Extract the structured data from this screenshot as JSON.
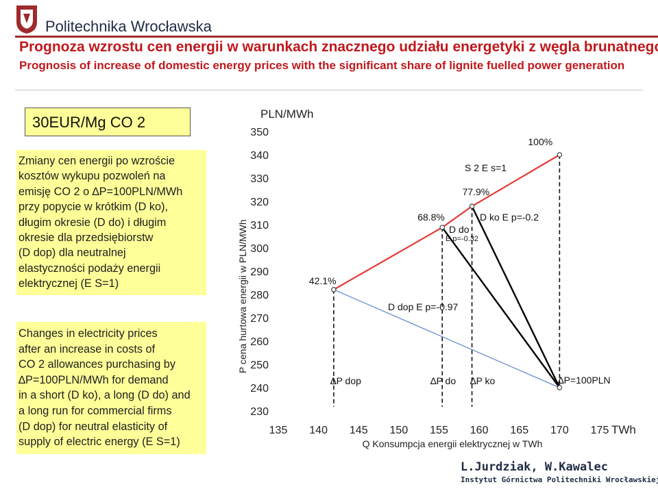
{
  "header": {
    "university": "Politechnika Wrocławska",
    "title_pl": "Prognoza wzrostu cen energii w warunkach znacznego udziału energetyki z węgla brunatnego",
    "title_en": "Prognosis of increase of domestic energy prices with the significant share of lignite fuelled power generation"
  },
  "side": {
    "price_box": "30EUR/Mg CO 2",
    "text_pl": "Zmiany cen energii po wzroście\nkosztów wykupu pozwoleń na\nemisję CO 2 o ∆P=100PLN/MWh\nprzy popycie w krótkim (D ko),\ndługim okresie (D do) i długim\nokresie dla przedsiębiorstw\n(D dop) dla neutralnej\nelastyczności podaży energii\nelektrycznej (E S=1)",
    "text_en": "Changes in electricity prices\nafter an increase in costs of\nCO 2 allowances purchasing by\n∆P=100PLN/MWh for demand\nin a short (D ko), a long (D do) and\na long run for commercial firms\n(D dop) for neutral elasticity of\nsupply of electric energy (E S=1)"
  },
  "footer": {
    "authors": "L.Jurdziak, W.Kawalec",
    "institute": "Instytut Górnictwa Politechniki Wrocławskiej"
  },
  "chart_data": {
    "type": "line",
    "ylabel_unit": "PLN/MWh",
    "ylabel": "P cena hurtowa energii   w PLN/MWh",
    "xlabel": "Q Konsumpcja energii elektrycznej w TWh",
    "xlabel_unit": "TWh",
    "xlim": [
      135,
      175
    ],
    "ylim": [
      230,
      350
    ],
    "xticks": [
      135,
      140,
      145,
      150,
      155,
      160,
      165,
      170,
      175
    ],
    "yticks": [
      230,
      240,
      250,
      260,
      270,
      280,
      290,
      300,
      310,
      320,
      330,
      340,
      350
    ],
    "points": {
      "base": {
        "x": 170,
        "y": 240
      },
      "dop": {
        "x": 141.9,
        "y": 282.1,
        "label": "42.1%"
      },
      "do": {
        "x": 155.4,
        "y": 308.8,
        "label": "68.8%"
      },
      "ko": {
        "x": 159.1,
        "y": 317.9,
        "label": "77.9%"
      },
      "s2": {
        "x": 170,
        "y": 340,
        "label": "100%"
      }
    },
    "curves": [
      {
        "name": "D dop E p=-0.97",
        "color": "#6a8fd0",
        "x": [
          141.9,
          170
        ],
        "y": [
          282.1,
          240
        ]
      },
      {
        "name": "D do E p=-0.32",
        "color": "#000000",
        "x": [
          155.4,
          170
        ],
        "y": [
          308.8,
          240
        ]
      },
      {
        "name": "D ko E p=-0.2",
        "color": "#000000",
        "x": [
          159.1,
          170
        ],
        "y": [
          317.9,
          240
        ]
      },
      {
        "name": "S 2 E s=1",
        "color": "#e53935",
        "x": [
          141.9,
          155.4,
          159.1,
          170
        ],
        "y": [
          282.1,
          308.8,
          317.9,
          340
        ]
      }
    ],
    "labels": {
      "s2": "S 2 E s=1",
      "dko": "D ko E p=-0.2",
      "ddo": "D do",
      "ddo_e": "E p=-0.32",
      "ddop": "D dop E p=-0.97",
      "dp_dop": "∆P dop",
      "dp_do": "∆P do",
      "dp_ko": "∆P ko",
      "dp_total": "∆P=100PLN"
    },
    "colors": {
      "supply": "#e53935",
      "dop": "#6a8fd0",
      "demand": "#000000"
    }
  }
}
